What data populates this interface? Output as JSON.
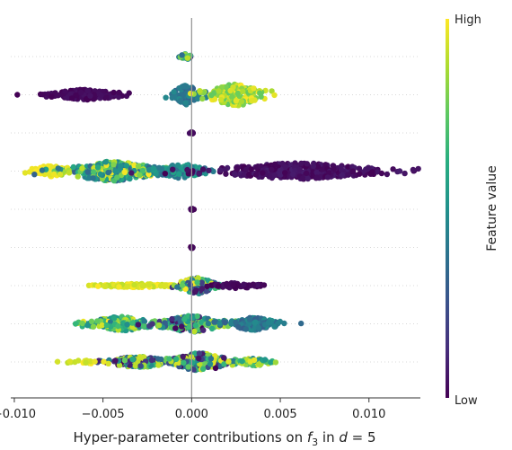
{
  "chart_data": {
    "type": "scatter",
    "subtype": "beeswarm",
    "title": "",
    "xlabel": "Hyper-parameter contributions on f3 in d = 5",
    "xlabel_parts": {
      "prefix": "Hyper-parameter contributions on ",
      "f": "f",
      "sub": "3",
      "mid": " in ",
      "d": "d",
      "eq": " = 5"
    },
    "ylabel": "",
    "xlim": [
      -0.0102,
      0.0129
    ],
    "xticks": [
      -0.01,
      -0.005,
      0.0,
      0.005,
      0.01
    ],
    "xtick_labels": [
      "−0.010",
      "−0.005",
      "0.000",
      "0.005",
      "0.010"
    ],
    "grid": false,
    "zero_line": true,
    "colorbar": {
      "title": "Feature value",
      "high_label": "High",
      "low_label": "Low",
      "colormap": "viridis"
    },
    "colors": {
      "low": "#440154",
      "mid": "#21918c",
      "high": "#fde725",
      "zero_line": "#999999",
      "row_guide": "#cccccc"
    },
    "rows": [
      {
        "clusters": [
          {
            "x": -0.0003,
            "spread": 0.0004,
            "count": 30,
            "color_low": 0.1,
            "color_high": 0.9,
            "width": 3
          }
        ]
      },
      {
        "clusters": [
          {
            "x": -0.006,
            "spread": 0.0022,
            "count": 160,
            "color_low": 0.0,
            "color_high": 0.05,
            "width": 6
          },
          {
            "x": -0.0003,
            "spread": 0.0008,
            "count": 100,
            "color_low": 0.3,
            "color_high": 0.5,
            "width": 11
          },
          {
            "x": 0.0025,
            "spread": 0.0018,
            "count": 180,
            "color_low": 0.75,
            "color_high": 1.0,
            "width": 12
          }
        ]
      },
      {
        "clusters": [
          {
            "x": 0.0,
            "spread": 0.0001,
            "count": 14,
            "color_low": 0.0,
            "color_high": 0.05,
            "width": 1
          }
        ]
      },
      {
        "clusters": [
          {
            "x": -0.008,
            "spread": 0.0012,
            "count": 60,
            "color_low": 0.95,
            "color_high": 1.0,
            "width": 6
          },
          {
            "x": -0.0045,
            "spread": 0.003,
            "count": 320,
            "color_low": 0.3,
            "color_high": 1.0,
            "width": 11
          },
          {
            "x": -0.0006,
            "spread": 0.0016,
            "count": 100,
            "color_low": 0.3,
            "color_high": 0.6,
            "width": 8
          },
          {
            "x": 0.006,
            "spread": 0.005,
            "count": 360,
            "color_low": 0.0,
            "color_high": 0.08,
            "width": 9
          }
        ]
      },
      {
        "clusters": [
          {
            "x": 0.0,
            "spread": 0.0001,
            "count": 14,
            "color_low": 0.0,
            "color_high": 0.05,
            "width": 1
          }
        ]
      },
      {
        "clusters": [
          {
            "x": 0.0,
            "spread": 0.0001,
            "count": 14,
            "color_low": 0.0,
            "color_high": 0.05,
            "width": 1
          }
        ]
      },
      {
        "clusters": [
          {
            "x": -0.003,
            "spread": 0.0025,
            "count": 120,
            "color_low": 0.9,
            "color_high": 1.0,
            "width": 2
          },
          {
            "x": 0.0003,
            "spread": 0.0012,
            "count": 120,
            "color_low": 0.0,
            "color_high": 1.0,
            "width": 9
          },
          {
            "x": 0.0025,
            "spread": 0.0015,
            "count": 60,
            "color_low": 0.0,
            "color_high": 0.05,
            "width": 3
          }
        ]
      },
      {
        "clusters": [
          {
            "x": -0.004,
            "spread": 0.002,
            "count": 200,
            "color_low": 0.4,
            "color_high": 1.0,
            "width": 8
          },
          {
            "x": 0.0,
            "spread": 0.002,
            "count": 220,
            "color_low": 0.0,
            "color_high": 0.9,
            "width": 9
          },
          {
            "x": 0.0035,
            "spread": 0.0015,
            "count": 160,
            "color_low": 0.3,
            "color_high": 0.5,
            "width": 7
          }
        ]
      },
      {
        "clusters": [
          {
            "x": -0.003,
            "spread": 0.002,
            "count": 150,
            "color_low": 0.0,
            "color_high": 1.0,
            "width": 6
          },
          {
            "x": 0.0005,
            "spread": 0.0018,
            "count": 220,
            "color_low": 0.0,
            "color_high": 1.0,
            "width": 10
          },
          {
            "x": 0.0035,
            "spread": 0.0012,
            "count": 80,
            "color_low": 0.4,
            "color_high": 1.0,
            "width": 4
          },
          {
            "x": -0.006,
            "spread": 0.001,
            "count": 18,
            "color_low": 0.9,
            "color_high": 1.0,
            "width": 2
          }
        ]
      }
    ]
  }
}
